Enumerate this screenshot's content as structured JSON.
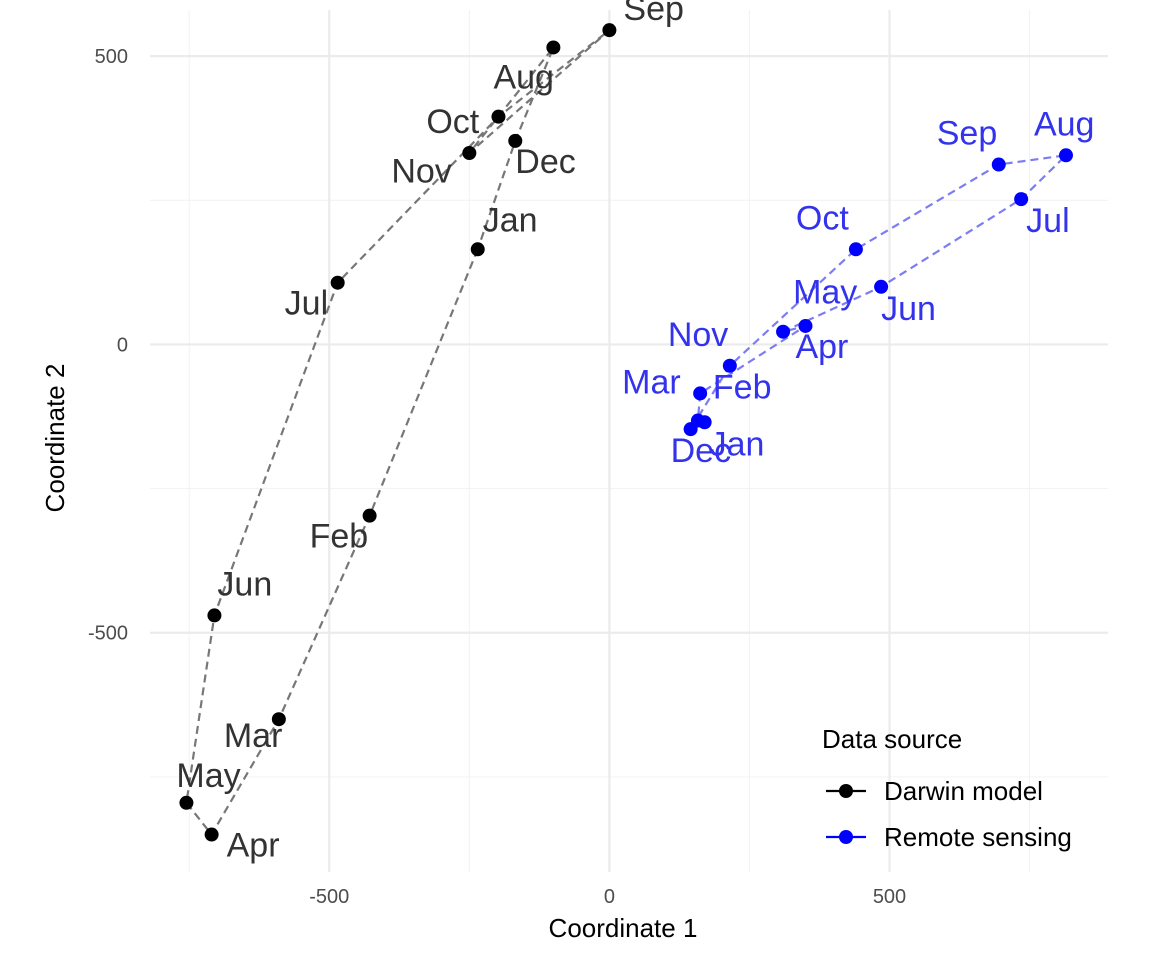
{
  "chart_data": {
    "type": "scatter",
    "title": "",
    "xlabel": "Coordinate 1",
    "ylabel": "Coordinate 2",
    "xlim": [
      -820,
      890
    ],
    "ylim": [
      -915,
      580
    ],
    "x_ticks": [
      {
        "value": -500,
        "label": "-500"
      },
      {
        "value": 0,
        "label": "0"
      },
      {
        "value": 500,
        "label": "500"
      }
    ],
    "y_ticks": [
      {
        "value": -500,
        "label": "-500"
      },
      {
        "value": 0,
        "label": "0"
      },
      {
        "value": 500,
        "label": "500"
      }
    ],
    "grid": true,
    "legend": {
      "title": "Data source",
      "placement": "bottom-right"
    },
    "series": [
      {
        "name": "Darwin model",
        "color": "#000000",
        "line_color": "#777777",
        "label_color": "#333333",
        "path_closed": true,
        "points": [
          {
            "month": "Jan",
            "x": -235,
            "y": 165,
            "label_dx": 5,
            "label_dy": -18
          },
          {
            "month": "Feb",
            "x": -428,
            "y": -297,
            "label_dx": -60,
            "label_dy": 32
          },
          {
            "month": "Mar",
            "x": -590,
            "y": -650,
            "label_dx": -55,
            "label_dy": 28
          },
          {
            "month": "Apr",
            "x": -710,
            "y": -850,
            "label_dx": 15,
            "label_dy": 22
          },
          {
            "month": "May",
            "x": -755,
            "y": -795,
            "label_dx": -10,
            "label_dy": -16
          },
          {
            "month": "Jun",
            "x": -705,
            "y": -470,
            "label_dx": 3,
            "label_dy": -20
          },
          {
            "month": "Jul",
            "x": -485,
            "y": 107,
            "label_dx": -53,
            "label_dy": 32
          },
          {
            "month": "Aug",
            "x": -198,
            "y": 395,
            "label_dx": -5,
            "label_dy": -28
          },
          {
            "month": "Sep",
            "x": 0,
            "y": 545,
            "label_dx": 14,
            "label_dy": -10
          },
          {
            "month": "Oct",
            "x": -250,
            "y": 332,
            "label_dx": -43,
            "label_dy": -20
          },
          {
            "month": "Nov",
            "x": -100,
            "y": 515,
            "label_dx": -162,
            "label_dy": 135
          },
          {
            "month": "Dec",
            "x": -168,
            "y": 353,
            "label_dx": 0,
            "label_dy": 32
          }
        ]
      },
      {
        "name": "Remote sensing",
        "color": "#0000ff",
        "line_color": "#7c7cf5",
        "label_color": "#3333ee",
        "path_closed": true,
        "points": [
          {
            "month": "Jan",
            "x": 170,
            "y": -135,
            "label_dx": 5,
            "label_dy": 33
          },
          {
            "month": "Feb",
            "x": 158,
            "y": -132,
            "label_dx": 15,
            "label_dy": -22
          },
          {
            "month": "Mar",
            "x": 162,
            "y": -85,
            "label_dx": -78,
            "label_dy": 0
          },
          {
            "month": "Apr",
            "x": 350,
            "y": 32,
            "label_dx": -10,
            "label_dy": 32
          },
          {
            "month": "May",
            "x": 310,
            "y": 22,
            "label_dx": 10,
            "label_dy": -28
          },
          {
            "month": "Jun",
            "x": 485,
            "y": 100,
            "label_dx": 0,
            "label_dy": 33
          },
          {
            "month": "Jul",
            "x": 735,
            "y": 252,
            "label_dx": 5,
            "label_dy": 33
          },
          {
            "month": "Aug",
            "x": 815,
            "y": 328,
            "label_dx": -32,
            "label_dy": -20
          },
          {
            "month": "Sep",
            "x": 695,
            "y": 312,
            "label_dx": -62,
            "label_dy": -20
          },
          {
            "month": "Oct",
            "x": 440,
            "y": 165,
            "label_dx": -60,
            "label_dy": -20
          },
          {
            "month": "Nov",
            "x": 215,
            "y": -37,
            "label_dx": -62,
            "label_dy": -20
          },
          {
            "month": "Dec",
            "x": 145,
            "y": -147,
            "label_dx": -20,
            "label_dy": 33
          }
        ]
      }
    ]
  }
}
